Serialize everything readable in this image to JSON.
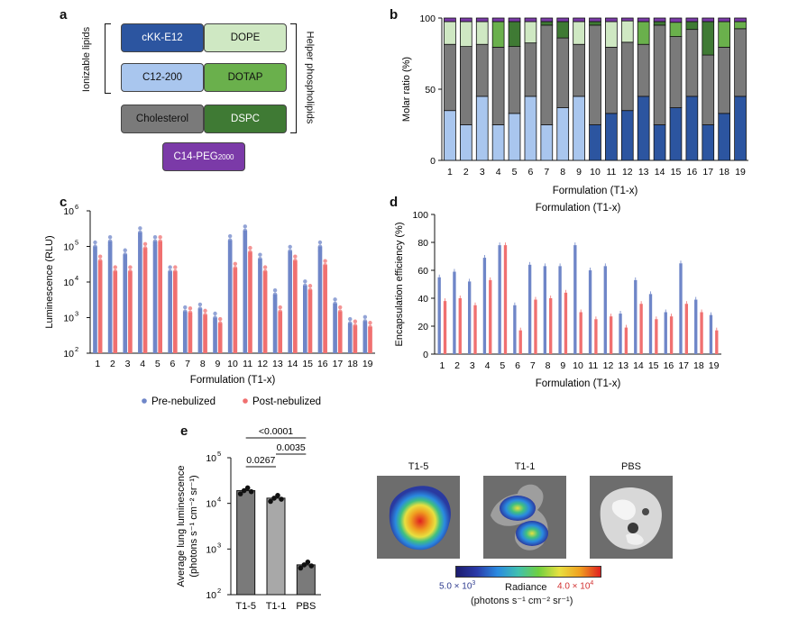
{
  "panels": {
    "a": "a",
    "b": "b",
    "c": "c",
    "d": "d",
    "e": "e"
  },
  "panel_a": {
    "ionizable_label": "Ionizable lipids",
    "helper_label": "Helper phospholipids",
    "boxes": [
      {
        "id": "ckk",
        "label": "cKK-E12",
        "color": "#2c55a0",
        "text_color": "#ffffff"
      },
      {
        "id": "dope",
        "label": "DOPE",
        "color": "#cfe8c3",
        "text_color": "#111111"
      },
      {
        "id": "c12",
        "label": "C12-200",
        "color": "#a9c6ee",
        "text_color": "#111111"
      },
      {
        "id": "dotap",
        "label": "DOTAP",
        "color": "#6ab04c",
        "text_color": "#111111"
      },
      {
        "id": "chol",
        "label": "Cholesterol",
        "color": "#7a7a7a",
        "text_color": "#111111"
      },
      {
        "id": "dspc",
        "label": "DSPC",
        "color": "#3f7a34",
        "text_color": "#ffffff"
      },
      {
        "id": "peg",
        "label": "C14-PEG",
        "sub": "2000",
        "color": "#7b3aa8",
        "text_color": "#ffffff"
      }
    ]
  },
  "chart_data": [
    {
      "panel": "b",
      "type": "bar",
      "stacked": true,
      "title": "Formulation (T1-x)",
      "xlabel": "",
      "ylabel": "Molar ratio (%)",
      "ylim": [
        0,
        100
      ],
      "yticks": [
        0,
        50,
        100
      ],
      "categories": [
        "1",
        "2",
        "3",
        "4",
        "5",
        "6",
        "7",
        "8",
        "9",
        "10",
        "11",
        "12",
        "13",
        "14",
        "15",
        "16",
        "17",
        "18",
        "19"
      ],
      "series": [
        {
          "name": "cKK-E12",
          "color": "#2c55a0",
          "values": [
            0,
            0,
            0,
            0,
            0,
            0,
            0,
            0,
            0,
            25,
            33,
            35,
            45,
            25,
            37,
            45,
            25,
            33,
            45
          ]
        },
        {
          "name": "C12-200",
          "color": "#a9c6ee",
          "values": [
            35,
            25,
            45,
            25,
            33,
            45,
            25,
            37,
            45,
            0,
            0,
            0,
            0,
            0,
            0,
            0,
            0,
            0,
            0
          ]
        },
        {
          "name": "Cholesterol",
          "color": "#7a7a7a",
          "values": [
            46.5,
            55,
            36.5,
            54.5,
            47,
            37.5,
            70,
            49,
            36.5,
            70,
            46.5,
            48,
            36.5,
            70,
            50,
            47,
            49,
            46.5,
            47.5
          ]
        },
        {
          "name": "DOPE",
          "color": "#cfe8c3",
          "values": [
            16,
            17.5,
            16,
            0,
            0,
            15,
            0,
            0,
            16,
            0,
            18,
            15,
            0,
            0,
            0,
            0,
            0,
            0,
            0
          ]
        },
        {
          "name": "DOTAP",
          "color": "#6ab04c",
          "values": [
            0,
            0,
            0,
            18,
            0,
            0,
            0,
            0,
            0,
            0,
            0,
            0,
            16,
            0,
            10,
            0,
            0,
            18,
            5
          ]
        },
        {
          "name": "DSPC",
          "color": "#3f7a34",
          "values": [
            0,
            0,
            0,
            0,
            17.5,
            0,
            2.5,
            11.5,
            0,
            2.5,
            0,
            0,
            0,
            2.5,
            0,
            5.5,
            23.5,
            0,
            0
          ]
        },
        {
          "name": "C14-PEG2000",
          "color": "#7b3aa8",
          "values": [
            2.5,
            2.5,
            2.5,
            2.5,
            2.5,
            2.5,
            2.5,
            2.5,
            2.5,
            2.5,
            2.5,
            2,
            2.5,
            2.5,
            3,
            2.5,
            2.5,
            2.5,
            2.5
          ]
        }
      ]
    },
    {
      "panel": "c",
      "type": "bar",
      "title": "",
      "xlabel": "Formulation (T1-x)",
      "ylabel": "Luminescence (RLU)",
      "yscale": "log",
      "ylim": [
        100,
        1000000
      ],
      "yticks": [
        "10",
        "10",
        "10",
        "10",
        "10"
      ],
      "ytick_exp": [
        "2",
        "3",
        "4",
        "5",
        "6"
      ],
      "categories": [
        "1",
        "2",
        "3",
        "4",
        "5",
        "6",
        "7",
        "8",
        "9",
        "10",
        "11",
        "12",
        "13",
        "14",
        "15",
        "16",
        "17",
        "18",
        "19"
      ],
      "series": [
        {
          "name": "Pre-nebulized",
          "color": "#6f86c8",
          "values": [
            100000,
            140000,
            60000,
            250000,
            140000,
            20000,
            1500,
            1800,
            1000,
            150000,
            280000,
            45000,
            4500,
            75000,
            8000,
            100000,
            2500,
            700,
            800
          ]
        },
        {
          "name": "Post-nebulized",
          "color": "#f07070",
          "values": [
            40000,
            20000,
            20000,
            90000,
            140000,
            20000,
            1400,
            1200,
            700,
            25000,
            70000,
            20000,
            1500,
            40000,
            6000,
            30000,
            1500,
            600,
            550
          ]
        }
      ],
      "legend": [
        "Pre-nebulized",
        "Post-nebulized"
      ]
    },
    {
      "panel": "d",
      "type": "bar",
      "title": "Formulation (T1-x)",
      "xlabel": "Formulation (T1-x)",
      "ylabel": "Encapsulation efficiency (%)",
      "ylim": [
        0,
        100
      ],
      "yticks": [
        0,
        20,
        40,
        60,
        80,
        100
      ],
      "categories": [
        "1",
        "2",
        "3",
        "4",
        "5",
        "6",
        "7",
        "8",
        "9",
        "10",
        "11",
        "12",
        "13",
        "14",
        "15",
        "16",
        "17",
        "18",
        "19"
      ],
      "series": [
        {
          "name": "Pre-nebulized",
          "color": "#6f86c8",
          "values": [
            55,
            59,
            52,
            69,
            78,
            35,
            64,
            63,
            63,
            78,
            60,
            63,
            29,
            53,
            43,
            30,
            65,
            39,
            28
          ]
        },
        {
          "name": "Post-nebulized",
          "color": "#f07070",
          "values": [
            38,
            40,
            35,
            53,
            78,
            17,
            39,
            40,
            44,
            30,
            25,
            27,
            19,
            36,
            25,
            27,
            36,
            30,
            17
          ]
        }
      ]
    },
    {
      "panel": "e",
      "type": "bar",
      "title": "",
      "xlabel": "",
      "ylabel": "Average lung luminescence",
      "ylabel2": "(photons s⁻¹ cm⁻² sr⁻¹)",
      "yscale": "log",
      "ylim": [
        100,
        100000
      ],
      "yticks": [
        "10",
        "10",
        "10",
        "10"
      ],
      "ytick_exp": [
        "2",
        "3",
        "4",
        "5"
      ],
      "categories": [
        "T1-5",
        "T1-1",
        "PBS"
      ],
      "values": [
        19000,
        13000,
        450
      ],
      "colors": [
        "#7a7a7a",
        "#a8a8a8",
        "#7a7a7a"
      ],
      "annotations": [
        "<0.0001",
        "0.0267",
        "0.0035"
      ]
    }
  ],
  "imaging": {
    "titles": [
      "T1-5",
      "T1-1",
      "PBS"
    ],
    "colorbar_min": "5.0 × 10",
    "colorbar_min_exp": "3",
    "colorbar_max": "4.0 × 10",
    "colorbar_max_exp": "4",
    "colorbar_label": "Radiance",
    "colorbar_units": "(photons s⁻¹ cm⁻² sr⁻¹)",
    "min_color": "#2f3c8f",
    "max_color": "#d23030"
  }
}
